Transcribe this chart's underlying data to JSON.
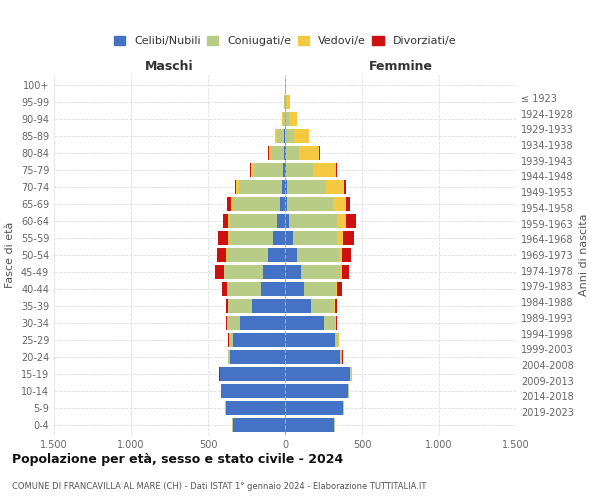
{
  "age_groups_bottom_to_top": [
    "0-4",
    "5-9",
    "10-14",
    "15-19",
    "20-24",
    "25-29",
    "30-34",
    "35-39",
    "40-44",
    "45-49",
    "50-54",
    "55-59",
    "60-64",
    "65-69",
    "70-74",
    "75-79",
    "80-84",
    "85-89",
    "90-94",
    "95-99",
    "100+"
  ],
  "birth_years_bottom_to_top": [
    "2019-2023",
    "2014-2018",
    "2009-2013",
    "2004-2008",
    "1999-2003",
    "1994-1998",
    "1989-1993",
    "1984-1988",
    "1979-1983",
    "1974-1978",
    "1969-1973",
    "1964-1968",
    "1959-1963",
    "1954-1958",
    "1949-1953",
    "1944-1948",
    "1939-1943",
    "1934-1938",
    "1929-1933",
    "1924-1928",
    "≤ 1923"
  ],
  "males": {
    "celibi": [
      340,
      385,
      415,
      420,
      360,
      340,
      295,
      215,
      155,
      140,
      110,
      75,
      50,
      35,
      20,
      12,
      8,
      5,
      2,
      1,
      0
    ],
    "coniugati": [
      5,
      3,
      3,
      5,
      10,
      22,
      80,
      155,
      220,
      255,
      265,
      290,
      305,
      305,
      280,
      190,
      85,
      50,
      12,
      3,
      0
    ],
    "vedovi": [
      0,
      0,
      0,
      0,
      0,
      2,
      2,
      2,
      2,
      4,
      5,
      8,
      12,
      12,
      15,
      18,
      12,
      8,
      4,
      2,
      0
    ],
    "divorziati": [
      0,
      0,
      0,
      2,
      3,
      5,
      8,
      12,
      35,
      55,
      60,
      60,
      35,
      22,
      12,
      8,
      5,
      3,
      2,
      0,
      0
    ]
  },
  "females": {
    "nubili": [
      320,
      375,
      410,
      425,
      360,
      325,
      250,
      170,
      125,
      105,
      80,
      50,
      25,
      15,
      10,
      6,
      4,
      3,
      2,
      1,
      0
    ],
    "coniugate": [
      5,
      3,
      3,
      5,
      10,
      20,
      75,
      145,
      205,
      250,
      270,
      290,
      315,
      295,
      255,
      175,
      90,
      55,
      22,
      6,
      1
    ],
    "vedove": [
      2,
      2,
      2,
      2,
      2,
      3,
      5,
      8,
      10,
      15,
      22,
      38,
      58,
      88,
      118,
      148,
      128,
      95,
      52,
      28,
      3
    ],
    "divorziate": [
      0,
      0,
      0,
      2,
      3,
      5,
      8,
      15,
      30,
      45,
      58,
      72,
      60,
      22,
      12,
      10,
      8,
      4,
      2,
      0,
      0
    ]
  },
  "colors": {
    "celibi_nubili": "#4472C4",
    "coniugati": "#B8CC88",
    "vedovi": "#F5C842",
    "divorziati": "#CC1111"
  },
  "title": "Popolazione per età, sesso e stato civile - 2024",
  "subtitle": "COMUNE DI FRANCAVILLA AL MARE (CH) - Dati ISTAT 1° gennaio 2024 - Elaborazione TUTTITALIA.IT",
  "xlabel_left": "Maschi",
  "xlabel_right": "Femmine",
  "ylabel_left": "Fasce di età",
  "ylabel_right": "Anni di nascita",
  "xlim": 1500,
  "background_color": "#ffffff",
  "grid_color": "#cccccc"
}
